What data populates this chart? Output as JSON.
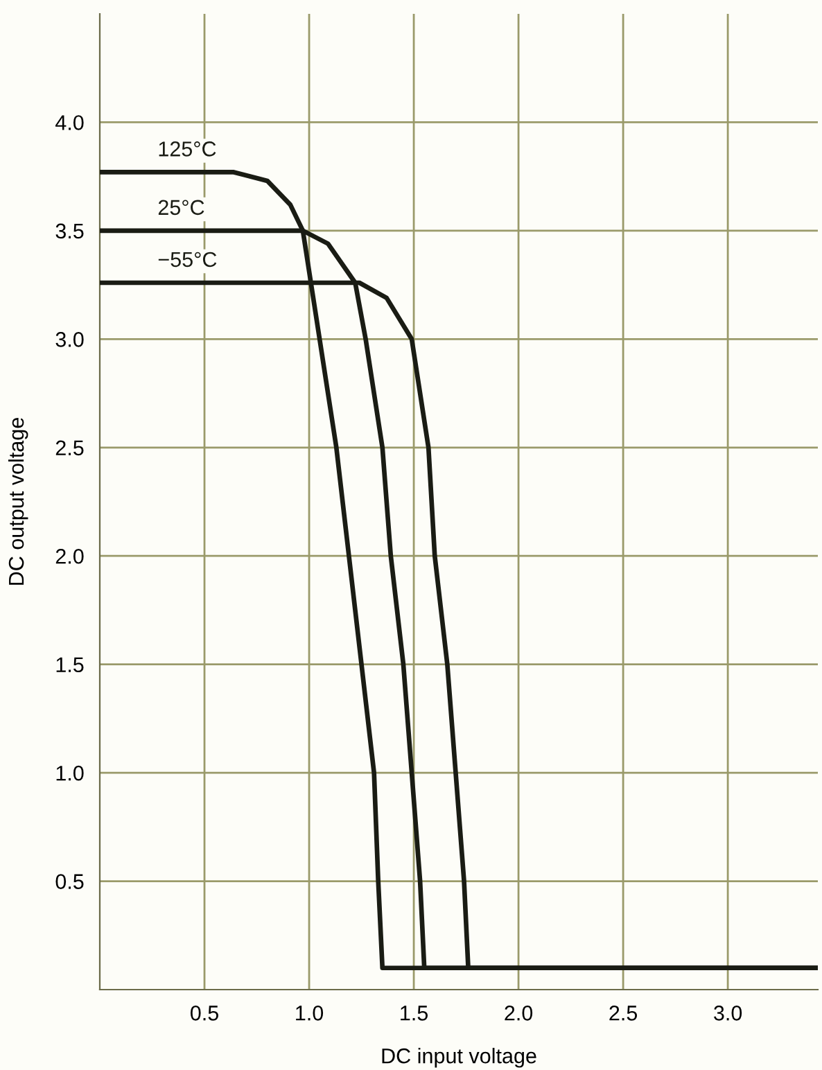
{
  "chart_data": {
    "type": "line",
    "xlabel": "DC input voltage",
    "ylabel": "DC output voltage",
    "xlim": [
      0,
      3.43
    ],
    "ylim": [
      0,
      4.5
    ],
    "xticks": [
      0.5,
      {
        "value": 1,
        "label": "1.0"
      },
      1.5,
      {
        "value": 2,
        "label": "2.0"
      },
      2.5,
      {
        "value": 3,
        "label": "3.0"
      }
    ],
    "yticks": [
      0.5,
      {
        "value": 1,
        "label": "1.0"
      },
      1.5,
      {
        "value": 2,
        "label": "2.0"
      },
      2.5,
      {
        "value": 3,
        "label": "3.0"
      },
      3.5,
      {
        "value": 4,
        "label": "4.0"
      }
    ],
    "grid": true,
    "marker": "none",
    "line_style": "solid",
    "series": [
      {
        "name": "125°C",
        "color": "#1a1c14",
        "x": [
          0,
          0.64,
          0.8,
          0.91,
          0.97,
          1.05,
          1.13,
          1.19,
          1.25,
          1.31,
          1.33,
          1.35,
          3.43
        ],
        "values": [
          3.77,
          3.77,
          3.73,
          3.62,
          3.5,
          3.0,
          2.5,
          2.0,
          1.5,
          1.0,
          0.5,
          0.1,
          0.1
        ]
      },
      {
        "name": "25°C",
        "color": "#1a1c14",
        "x": [
          0,
          0.97,
          1.09,
          1.22,
          1.27,
          1.35,
          1.39,
          1.45,
          1.49,
          1.53,
          1.55,
          3.43
        ],
        "values": [
          3.5,
          3.5,
          3.44,
          3.26,
          3.0,
          2.5,
          2.0,
          1.5,
          1.0,
          0.5,
          0.1,
          0.1
        ]
      },
      {
        "name": "−55°C",
        "color": "#1a1c14",
        "x": [
          0,
          1.24,
          1.37,
          1.49,
          1.57,
          1.6,
          1.66,
          1.7,
          1.74,
          1.76,
          3.43
        ],
        "values": [
          3.26,
          3.26,
          3.19,
          3.0,
          2.5,
          2.0,
          1.5,
          1.0,
          0.5,
          0.1,
          0.1
        ]
      }
    ]
  }
}
